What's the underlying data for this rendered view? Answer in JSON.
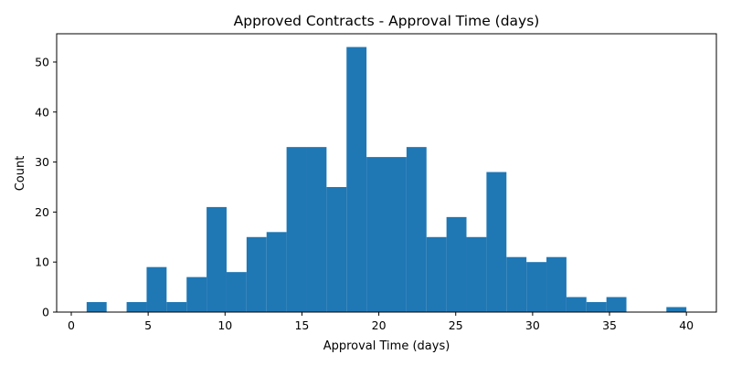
{
  "chart_data": {
    "type": "bar",
    "title": "Approved Contracts - Approval Time (days)",
    "xlabel": "Approval Time (days)",
    "ylabel": "Count",
    "bin_edges": [
      1,
      2.3,
      3.6,
      4.9,
      6.2,
      7.5,
      8.8,
      10.1,
      11.4,
      12.7,
      14,
      15.3,
      16.6,
      17.9,
      19.2,
      20.5,
      21.8,
      23.1,
      24.4,
      25.7,
      27,
      28.3,
      29.6,
      30.9,
      32.2,
      33.5,
      34.8,
      36.1,
      37.4,
      38.7,
      40
    ],
    "values": [
      2,
      0,
      2,
      9,
      2,
      7,
      21,
      8,
      15,
      16,
      33,
      33,
      25,
      53,
      31,
      31,
      33,
      15,
      19,
      15,
      28,
      11,
      10,
      11,
      3,
      2,
      3,
      0,
      0,
      1
    ],
    "xlim": [
      -0.95,
      41.95
    ],
    "ylim": [
      0,
      55.65
    ],
    "xticks": [
      0,
      5,
      10,
      15,
      20,
      25,
      30,
      35,
      40
    ],
    "yticks": [
      0,
      10,
      20,
      30,
      40,
      50
    ],
    "bar_color": "#1f77b4",
    "grid": false,
    "legend": "none"
  }
}
